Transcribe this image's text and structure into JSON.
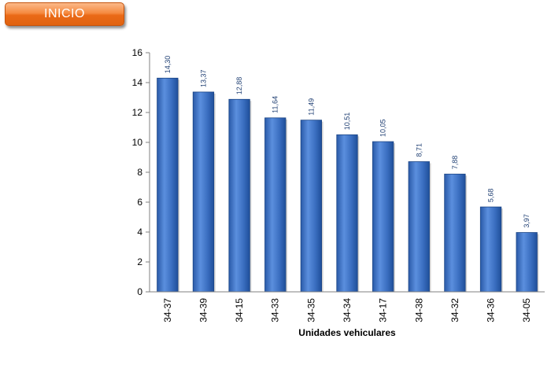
{
  "header": {
    "inicio_label": "INICIO"
  },
  "colors": {
    "button_orange": "#f07c2e",
    "bar_blue": "#3a6ec0",
    "bar_blue_dark": "#1f4f9a",
    "data_label": "#1f3f73"
  },
  "chart_data": {
    "type": "bar",
    "title": "",
    "xlabel": "Unidades vehiculares",
    "ylabel": "",
    "ylim": [
      0,
      16
    ],
    "yticks": [
      0,
      2,
      4,
      6,
      8,
      10,
      12,
      14,
      16
    ],
    "grid": false,
    "categories": [
      "34-37",
      "34-39",
      "34-15",
      "34-33",
      "34-35",
      "34-34",
      "34-17",
      "34-38",
      "34-32",
      "34-36",
      "34-05"
    ],
    "values": [
      14.3,
      13.37,
      12.88,
      11.64,
      11.49,
      10.51,
      10.05,
      8.71,
      7.88,
      5.68,
      3.97
    ],
    "value_labels": [
      "14,30",
      "13,37",
      "12,88",
      "11,64",
      "11,49",
      "10,51",
      "10,05",
      "8,71",
      "7,88",
      "5,68",
      "3,97"
    ]
  }
}
